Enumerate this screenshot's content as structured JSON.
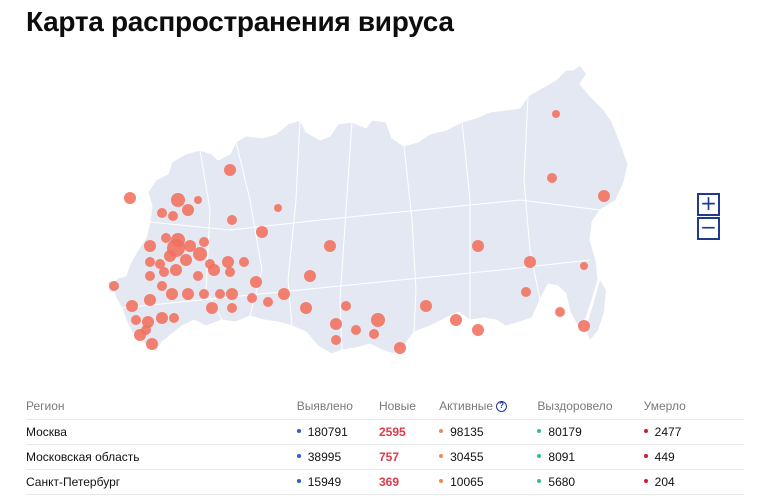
{
  "header": {
    "title": "Карта распространения вируса"
  },
  "colors": {
    "map_fill": "#e3e8f3",
    "map_border": "#ffffff",
    "marker": "#f26f5d",
    "detected_dot": "#2f5cc7",
    "active_dot": "#f08a56",
    "recovered_dot": "#38b99a",
    "dead_dot": "#c81e2e",
    "new_value": "#e0394a",
    "accent": "#1f3b8f"
  },
  "map_controls": {
    "zoom_in": "+",
    "zoom_out": "−"
  },
  "table": {
    "headers": {
      "region": "Регион",
      "detected": "Выявлено",
      "new": "Новые",
      "active": "Активные",
      "active_help": "?",
      "recovered": "Выздоровело",
      "dead": "Умерло"
    },
    "rows": [
      {
        "region": "Москва",
        "detected": "180791",
        "new": "2595",
        "active": "98135",
        "recovered": "80179",
        "dead": "2477"
      },
      {
        "region": "Московская область",
        "detected": "38995",
        "new": "757",
        "active": "30455",
        "recovered": "8091",
        "dead": "449"
      },
      {
        "region": "Санкт-Петербург",
        "detected": "15949",
        "new": "369",
        "active": "10065",
        "recovered": "5680",
        "dead": "204"
      }
    ]
  }
}
